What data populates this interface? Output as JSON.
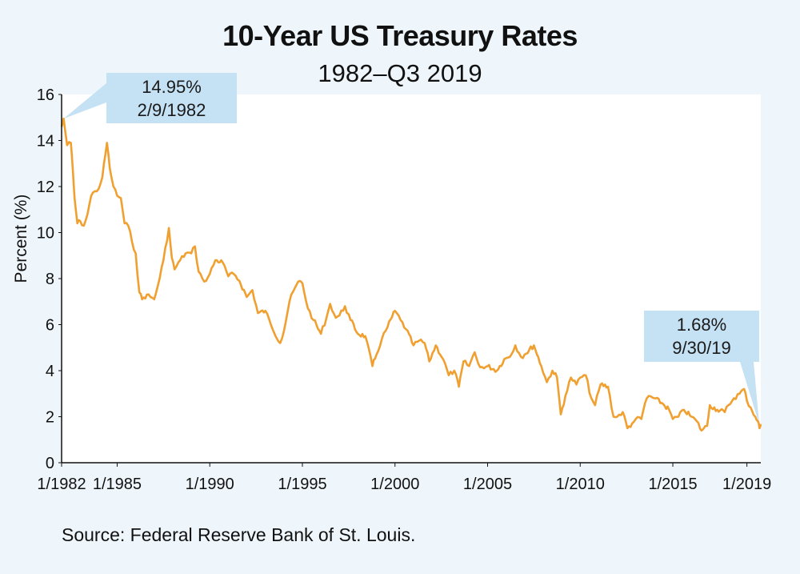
{
  "chart_data": {
    "type": "line",
    "title": "10-Year US Treasury Rates",
    "subtitle": "1982–Q3 2019",
    "xlabel": "",
    "ylabel": "Percent (%)",
    "ylim": [
      0,
      16
    ],
    "xlim": [
      1982.0,
      2019.75
    ],
    "yticks": [
      0,
      2,
      4,
      6,
      8,
      10,
      12,
      14,
      16
    ],
    "xticks": [
      {
        "value": 1982.0,
        "label": "1/1982"
      },
      {
        "value": 1985.0,
        "label": "1/1985"
      },
      {
        "value": 1990.0,
        "label": "1/1990"
      },
      {
        "value": 1995.0,
        "label": "1/1995"
      },
      {
        "value": 2000.0,
        "label": "1/2000"
      },
      {
        "value": 2005.0,
        "label": "1/2005"
      },
      {
        "value": 2010.0,
        "label": "1/2010"
      },
      {
        "value": 2015.0,
        "label": "1/2015"
      },
      {
        "value": 2019.0,
        "label": "1/2019"
      }
    ],
    "grid": false,
    "series": [
      {
        "name": "10-Year US Treasury Rate",
        "color": "#f0a030",
        "x": [
          1982.0,
          1982.11,
          1982.3,
          1982.5,
          1982.6,
          1982.7,
          1982.85,
          1983.0,
          1983.2,
          1983.4,
          1983.6,
          1983.8,
          1984.0,
          1984.2,
          1984.45,
          1984.6,
          1984.8,
          1985.0,
          1985.2,
          1985.4,
          1985.6,
          1985.8,
          1986.0,
          1986.2,
          1986.35,
          1986.6,
          1986.8,
          1987.0,
          1987.2,
          1987.5,
          1987.79,
          1987.95,
          1988.1,
          1988.4,
          1988.7,
          1989.0,
          1989.2,
          1989.4,
          1989.6,
          1989.8,
          1990.0,
          1990.3,
          1990.7,
          1991.0,
          1991.3,
          1991.6,
          1992.0,
          1992.3,
          1992.6,
          1993.0,
          1993.3,
          1993.8,
          1994.0,
          1994.3,
          1994.6,
          1994.85,
          1995.0,
          1995.3,
          1995.6,
          1996.0,
          1996.3,
          1996.5,
          1996.8,
          1997.0,
          1997.3,
          1997.6,
          1998.0,
          1998.4,
          1998.78,
          1999.0,
          1999.3,
          1999.6,
          2000.0,
          2000.3,
          2000.6,
          2001.0,
          2001.3,
          2001.6,
          2001.85,
          2002.2,
          2002.6,
          2002.9,
          2003.2,
          2003.45,
          2003.7,
          2004.0,
          2004.3,
          2004.5,
          2004.8,
          2005.0,
          2005.5,
          2005.9,
          2006.2,
          2006.5,
          2006.8,
          2007.0,
          2007.5,
          2007.9,
          2008.2,
          2008.5,
          2008.75,
          2008.95,
          2009.2,
          2009.5,
          2009.8,
          2010.0,
          2010.3,
          2010.6,
          2010.8,
          2011.1,
          2011.5,
          2011.8,
          2012.0,
          2012.3,
          2012.55,
          2012.8,
          2013.0,
          2013.3,
          2013.5,
          2013.7,
          2014.0,
          2014.4,
          2014.8,
          2015.0,
          2015.3,
          2015.6,
          2016.0,
          2016.3,
          2016.55,
          2016.85,
          2017.0,
          2017.4,
          2017.8,
          2018.0,
          2018.3,
          2018.6,
          2018.85,
          2019.0,
          2019.2,
          2019.45,
          2019.6,
          2019.68,
          2019.75
        ],
        "values": [
          14.6,
          14.95,
          13.8,
          13.9,
          12.8,
          11.5,
          10.4,
          10.5,
          10.3,
          10.8,
          11.6,
          11.8,
          11.9,
          12.4,
          13.9,
          12.8,
          12.0,
          11.6,
          11.5,
          10.4,
          10.3,
          9.6,
          9.1,
          7.4,
          7.1,
          7.3,
          7.2,
          7.1,
          7.7,
          8.8,
          10.2,
          8.9,
          8.4,
          8.8,
          9.1,
          9.1,
          9.4,
          8.3,
          8.0,
          7.9,
          8.2,
          8.8,
          8.7,
          8.1,
          8.2,
          7.9,
          7.2,
          7.5,
          6.5,
          6.6,
          6.0,
          5.2,
          5.7,
          7.0,
          7.6,
          7.9,
          7.8,
          6.7,
          6.2,
          5.6,
          6.3,
          6.9,
          6.3,
          6.4,
          6.8,
          6.2,
          5.6,
          5.5,
          4.2,
          4.7,
          5.4,
          5.9,
          6.6,
          6.2,
          5.8,
          5.1,
          5.3,
          5.2,
          4.4,
          5.1,
          4.5,
          3.8,
          4.0,
          3.3,
          4.4,
          4.2,
          4.8,
          4.3,
          4.1,
          4.2,
          4.0,
          4.5,
          4.6,
          5.1,
          4.6,
          4.7,
          5.1,
          4.2,
          3.5,
          4.0,
          3.7,
          2.1,
          2.9,
          3.7,
          3.4,
          3.7,
          3.8,
          2.8,
          2.5,
          3.4,
          3.3,
          2.0,
          2.0,
          2.2,
          1.5,
          1.7,
          1.9,
          1.9,
          2.6,
          2.9,
          2.8,
          2.6,
          2.3,
          1.9,
          2.0,
          2.3,
          2.0,
          1.8,
          1.4,
          1.6,
          2.5,
          2.3,
          2.2,
          2.5,
          2.8,
          3.0,
          3.2,
          2.7,
          2.4,
          2.0,
          1.8,
          1.5,
          1.68
        ]
      }
    ],
    "annotations": [
      {
        "line1": "14.95%",
        "line2": "2/9/1982",
        "x": 1982.11,
        "y": 14.95
      },
      {
        "line1": "1.68%",
        "line2": "9/30/19",
        "x": 2019.75,
        "y": 1.68
      }
    ]
  },
  "source": "Source: Federal Reserve Bank of St. Louis."
}
